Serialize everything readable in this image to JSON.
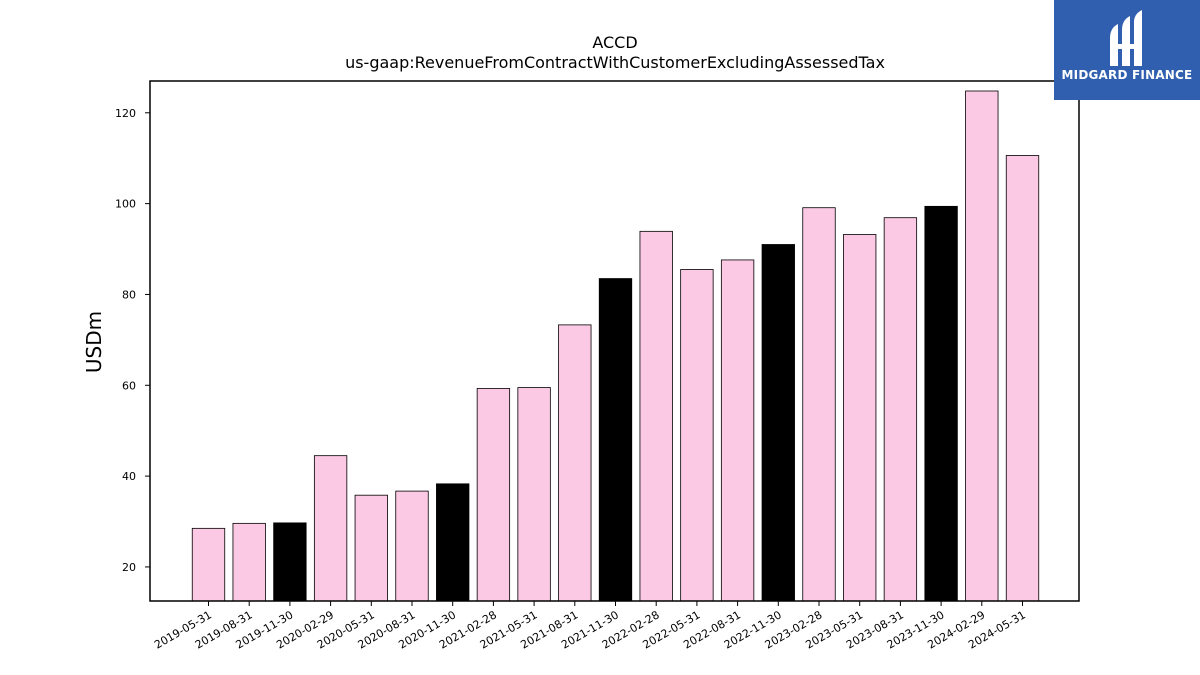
{
  "logo": {
    "text": "MIDGARD FINANCE",
    "background": "#2f5fae"
  },
  "chart_data": {
    "type": "bar",
    "title": "ACCD",
    "subtitle": "us-gaap:RevenueFromContractWithCustomerExcludingAssessedTax",
    "xlabel": "",
    "ylabel": "USDm",
    "ylim": [
      12.5,
      127
    ],
    "yticks": [
      20,
      40,
      60,
      80,
      100,
      120
    ],
    "grid": false,
    "categories": [
      "2019-05-31",
      "2019-08-31",
      "2019-11-30",
      "2020-02-29",
      "2020-05-31",
      "2020-08-31",
      "2020-11-30",
      "2021-02-28",
      "2021-05-31",
      "2021-08-31",
      "2021-11-30",
      "2022-02-28",
      "2022-05-31",
      "2022-08-31",
      "2022-11-30",
      "2023-02-28",
      "2023-05-31",
      "2023-08-31",
      "2023-11-30",
      "2024-02-29",
      "2024-05-31"
    ],
    "values": [
      28.5,
      29.6,
      29.7,
      44.5,
      35.8,
      36.7,
      38.3,
      59.3,
      59.5,
      73.3,
      83.5,
      93.9,
      85.5,
      87.6,
      91.0,
      99.1,
      93.2,
      96.9,
      99.4,
      124.8,
      110.6
    ],
    "highlighted": [
      false,
      false,
      true,
      false,
      false,
      false,
      true,
      false,
      false,
      false,
      true,
      false,
      false,
      false,
      true,
      false,
      false,
      false,
      true,
      false,
      false
    ],
    "colors": {
      "normal": "#fbc9e4",
      "highlight": "#000000",
      "edge": "#000000"
    }
  }
}
